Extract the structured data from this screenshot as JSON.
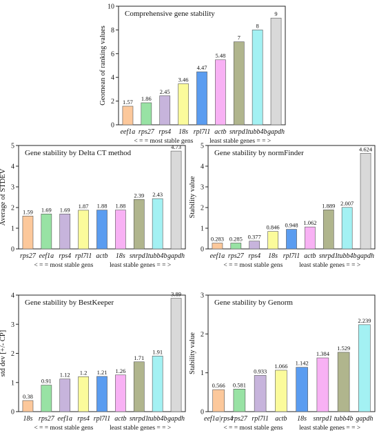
{
  "chart_data": [
    {
      "id": "comprehensive",
      "type": "bar",
      "title": "Comprehensive gene stability",
      "ylabel": "Geomean of ranking values",
      "xlabel_left": "< = = most stable gens",
      "xlabel_right": "least stable genes = = >",
      "categories": [
        "eef1a",
        "rps27",
        "rps4",
        "18s",
        "rpl7l1",
        "actb",
        "snrpd1",
        "tubb4b",
        "gapdh"
      ],
      "values": [
        1.57,
        1.86,
        2.45,
        3.46,
        4.47,
        5.48,
        7,
        8,
        9
      ],
      "value_labels": [
        "1.57",
        "1.86",
        "2.45",
        "3.46",
        "4.47",
        "5.48",
        "7",
        "8",
        "9"
      ],
      "colors": [
        "#fcc89b",
        "#98e2a4",
        "#c7b4dc",
        "#fbfb9b",
        "#5a9cf0",
        "#f8b1f4",
        "#b0b58d",
        "#a3f1f3",
        "#d9d9d9"
      ],
      "ylim": [
        0,
        10
      ],
      "yticks": [
        0,
        2,
        4,
        6,
        8,
        10
      ],
      "grid": false
    },
    {
      "id": "deltact",
      "type": "bar",
      "title": "Gene stability by Delta CT method",
      "ylabel": "Average of STDEV",
      "xlabel_left": "< = = most stable gens",
      "xlabel_right": "least stable genes = = >",
      "categories": [
        "rps27",
        "eef1a",
        "rps4",
        "rpl7l1",
        "actb",
        "18s",
        "snrpd1",
        "tubb4b",
        "gapdh"
      ],
      "values": [
        1.59,
        1.69,
        1.69,
        1.87,
        1.88,
        1.88,
        2.39,
        2.43,
        4.73
      ],
      "value_labels": [
        "1.59",
        "1.69",
        "1.69",
        "1.87",
        "1.88",
        "1.88",
        "2.39",
        "2.43",
        "4.73"
      ],
      "colors": [
        "#fcc89b",
        "#98e2a4",
        "#c7b4dc",
        "#fbfb9b",
        "#5a9cf0",
        "#f8b1f4",
        "#b0b58d",
        "#a3f1f3",
        "#d9d9d9"
      ],
      "ylim": [
        0,
        5
      ],
      "yticks": [
        0,
        1,
        2,
        3,
        4,
        5
      ],
      "grid": false
    },
    {
      "id": "normfinder",
      "type": "bar",
      "title": "Gene stability by normFinder",
      "ylabel": "Stability value",
      "xlabel_left": "< = = most stable gens",
      "xlabel_right": "least stable genes = = >",
      "categories": [
        "eef1a",
        "rps27",
        "rps4",
        "18s",
        "rpl7l1",
        "actb",
        "snrpd1",
        "tubb4b",
        "gapdh"
      ],
      "values": [
        0.283,
        0.285,
        0.377,
        0.846,
        0.948,
        1.062,
        1.889,
        2.007,
        4.624
      ],
      "value_labels": [
        "0.283",
        "0.285",
        "0.377",
        "0.846",
        "0.948",
        "1.062",
        "1.889",
        "2.007",
        "4.624"
      ],
      "colors": [
        "#fcc89b",
        "#98e2a4",
        "#c7b4dc",
        "#fbfb9b",
        "#5a9cf0",
        "#f8b1f4",
        "#b0b58d",
        "#a3f1f3",
        "#d9d9d9"
      ],
      "ylim": [
        0,
        5
      ],
      "yticks": [
        0,
        1,
        2,
        3,
        4,
        5
      ],
      "grid": false
    },
    {
      "id": "bestkeeper",
      "type": "bar",
      "title": "Gene stability by BestKeeper",
      "ylabel": "std dev [+/- CP]",
      "xlabel_left": "< = = most stable gens",
      "xlabel_right": "least stable genes = = >",
      "categories": [
        "18s",
        "rps27",
        "eef1a",
        "rps4",
        "rpl7l1",
        "actb",
        "snrpd1",
        "tubb4b",
        "gapdh"
      ],
      "values": [
        0.38,
        0.91,
        1.12,
        1.2,
        1.21,
        1.26,
        1.71,
        1.91,
        3.89
      ],
      "value_labels": [
        "0.38",
        "0.91",
        "1.12",
        "1.2",
        "1.21",
        "1.26",
        "1.71",
        "1.91",
        "3.89"
      ],
      "colors": [
        "#fcc89b",
        "#98e2a4",
        "#c7b4dc",
        "#fbfb9b",
        "#5a9cf0",
        "#f8b1f4",
        "#b0b58d",
        "#a3f1f3",
        "#d9d9d9"
      ],
      "ylim": [
        0,
        4
      ],
      "yticks": [
        0,
        1,
        2,
        3,
        4
      ],
      "grid": false
    },
    {
      "id": "genorm",
      "type": "bar",
      "title": "Gene stability by Genorm",
      "ylabel": "Stability value",
      "xlabel_left": "< = = most stable gens",
      "xlabel_right": "least stable genes = = >",
      "categories": [
        "eef1a|rps4",
        "rps27",
        "rpl7l1",
        "actb",
        "18s",
        "snrpd1",
        "tubb4b",
        "gapdh"
      ],
      "values": [
        0.566,
        0.581,
        0.933,
        1.066,
        1.142,
        1.384,
        1.529,
        2.239
      ],
      "value_labels": [
        "0.566",
        "0.581",
        "0.933",
        "1.066",
        "1.142",
        "1.384",
        "1.529",
        "2.239"
      ],
      "colors": [
        "#fcc89b",
        "#98e2a4",
        "#c7b4dc",
        "#fbfb9b",
        "#5a9cf0",
        "#f8b1f4",
        "#b0b58d",
        "#a3f1f3"
      ],
      "ylim": [
        0,
        3
      ],
      "yticks": [
        0,
        1,
        2,
        3
      ],
      "grid": false
    }
  ]
}
